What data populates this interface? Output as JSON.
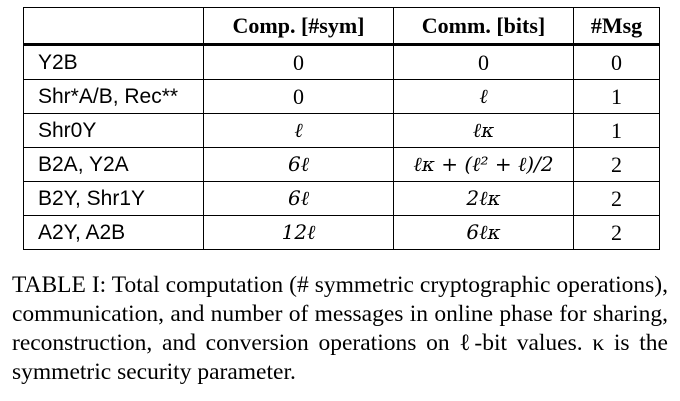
{
  "table": {
    "headers": [
      "",
      "Comp. [#sym]",
      "Comm. [bits]",
      "#Msg"
    ],
    "rows": [
      {
        "op": "Y2B",
        "comp": "0",
        "comm": "0",
        "msg": "0"
      },
      {
        "op": "Shr*A/B, Rec**",
        "comp": "0",
        "comm": "ℓ",
        "msg": "1"
      },
      {
        "op": "Shr0Y",
        "comp": "ℓ",
        "comm": "ℓκ",
        "msg": "1"
      },
      {
        "op": "B2A, Y2A",
        "comp": "6ℓ",
        "comm": "ℓκ + (ℓ² + ℓ)/2",
        "msg": "2"
      },
      {
        "op": "B2Y, Shr1Y",
        "comp": "6ℓ",
        "comm": "2ℓκ",
        "msg": "2"
      },
      {
        "op": "A2Y, A2B",
        "comp": "12ℓ",
        "comm": "6ℓκ",
        "msg": "2"
      }
    ]
  },
  "caption": "TABLE I: Total computation (# symmetric cryptographic operations), communication, and number of messages in online phase for sharing, reconstruction, and conversion operations on ℓ-bit values. κ is the symmetric security parameter."
}
